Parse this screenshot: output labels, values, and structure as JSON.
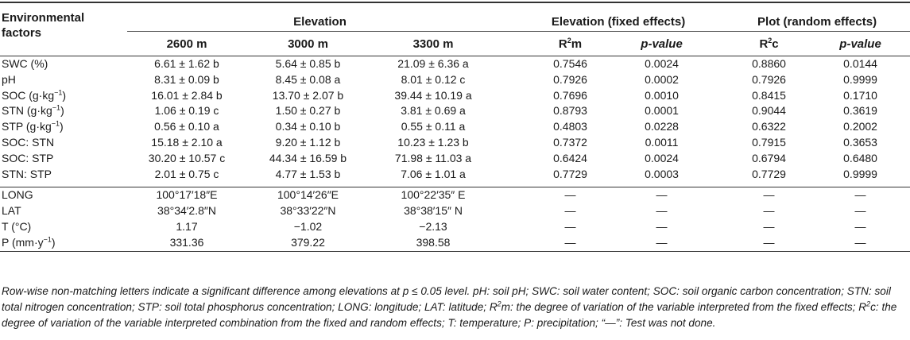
{
  "header": {
    "env_factors": "Environmental factors",
    "env_factors_line1": "Environmental",
    "env_factors_line2": "factors",
    "elevation": "Elevation",
    "fixed": "Elevation (fixed effects)",
    "random": "Plot (random effects)",
    "elev_2600": "2600 m",
    "elev_3000": "3000 m",
    "elev_3300": "3300 m",
    "r2m": "R2m",
    "r2c": "R2c",
    "pvalue": "p-value"
  },
  "rows": [
    {
      "factor": "SWC (%)",
      "e2600": "6.61 ± 1.62 b",
      "e3000": "5.64 ± 0.85 b",
      "e3300": "21.09 ± 6.36 a",
      "r2m": "0.7546",
      "p_fixed": "0.0024",
      "r2c": "0.8860",
      "p_random": "0.0144"
    },
    {
      "factor": "pH",
      "e2600": "8.31 ± 0.09 b",
      "e3000": "8.45 ± 0.08 a",
      "e3300": "8.01 ± 0.12 c",
      "r2m": "0.7926",
      "p_fixed": "0.0002",
      "r2c": "0.7926",
      "p_random": "0.9999"
    },
    {
      "factor": "SOC (g·kg−1)",
      "e2600": "16.01 ± 2.84 b",
      "e3000": "13.70 ± 2.07 b",
      "e3300": "39.44 ± 10.19 a",
      "r2m": "0.7696",
      "p_fixed": "0.0010",
      "r2c": "0.8415",
      "p_random": "0.1710"
    },
    {
      "factor": "STN (g·kg−1)",
      "e2600": "1.06 ± 0.19 c",
      "e3000": "1.50 ± 0.27 b",
      "e3300": "3.81 ± 0.69 a",
      "r2m": "0.8793",
      "p_fixed": "0.0001",
      "r2c": "0.9044",
      "p_random": "0.3619"
    },
    {
      "factor": "STP (g·kg−1)",
      "e2600": "0.56 ± 0.10 a",
      "e3000": "0.34 ± 0.10 b",
      "e3300": "0.55 ± 0.11 a",
      "r2m": "0.4803",
      "p_fixed": "0.0228",
      "r2c": "0.6322",
      "p_random": "0.2002"
    },
    {
      "factor": "SOC: STN",
      "e2600": "15.18 ± 2.10 a",
      "e3000": "9.20 ± 1.12 b",
      "e3300": "10.23 ± 1.23 b",
      "r2m": "0.7372",
      "p_fixed": "0.0011",
      "r2c": "0.7915",
      "p_random": "0.3653"
    },
    {
      "factor": "SOC: STP",
      "e2600": "30.20 ± 10.57 c",
      "e3000": "44.34 ± 16.59 b",
      "e3300": "71.98 ± 11.03 a",
      "r2m": "0.6424",
      "p_fixed": "0.0024",
      "r2c": "0.6794",
      "p_random": "0.6480"
    },
    {
      "factor": "STN: STP",
      "e2600": "2.01 ± 0.75 c",
      "e3000": "4.77 ± 1.53 b",
      "e3300": "7.06 ± 1.01 a",
      "r2m": "0.7729",
      "p_fixed": "0.0003",
      "r2c": "0.7729",
      "p_random": "0.9999"
    }
  ],
  "site_rows": [
    {
      "factor": "LONG",
      "e2600": "100°17′18″E",
      "e3000": "100°14′26″E",
      "e3300": "100°22′35″ E",
      "r2m": "—",
      "p_fixed": "—",
      "r2c": "—",
      "p_random": "—"
    },
    {
      "factor": "LAT",
      "e2600": "38°34′2.8″N",
      "e3000": "38°33′22″N",
      "e3300": "38°38′15″ N",
      "r2m": "—",
      "p_fixed": "—",
      "r2c": "—",
      "p_random": "—"
    },
    {
      "factor": "T (°C)",
      "e2600": "1.17",
      "e3000": "−1.02",
      "e3300": "−2.13",
      "r2m": "—",
      "p_fixed": "—",
      "r2c": "—",
      "p_random": "—"
    },
    {
      "factor": "P (mm·y−1)",
      "e2600": "331.36",
      "e3000": "379.22",
      "e3300": "398.58",
      "r2m": "—",
      "p_fixed": "—",
      "r2c": "—",
      "p_random": "—"
    }
  ],
  "footnote": "Row-wise non-matching letters indicate a significant difference among elevations at p ≤ 0.05 level. pH: soil pH; SWC: soil water content; SOC: soil organic carbon concentration; STN: soil total nitrogen concentration; STP: soil total phosphorus concentration; LONG: longitude; LAT: latitude; R2m: the degree of variation of the variable interpreted from the fixed effects; R2c: the degree of variation of the variable interpreted combination from the fixed and random effects; T: temperature; P: precipitation; “—”: Test was not done."
}
